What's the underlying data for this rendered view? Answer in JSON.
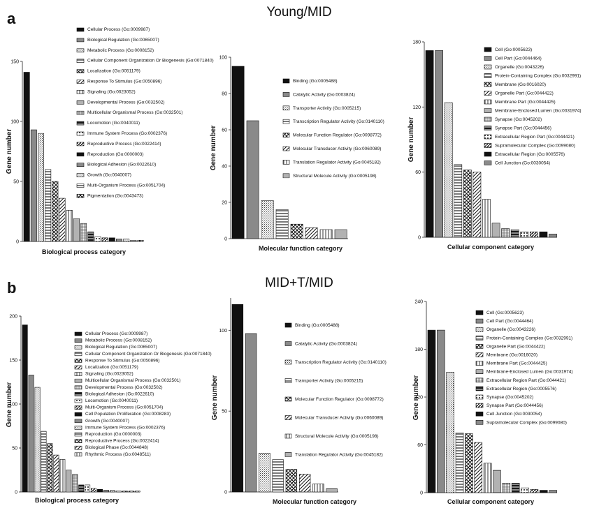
{
  "figure": {
    "panel_a_letter": "a",
    "panel_b_letter": "b",
    "row_a_title": "Young/MID",
    "row_b_title": "MID+T/MID"
  },
  "chart_data": [
    {
      "type": "bar",
      "row": "a",
      "col": 0,
      "xlabel": "Biological process category",
      "ylabel": "Gene number",
      "ylim": [
        0,
        150
      ],
      "yticks": [
        0,
        50,
        100,
        150
      ],
      "categories": [
        "Cellular Process (Go:0009987)",
        "Biological Regulation (Go:0065007)",
        "Metabolic Process (Go:0008152)",
        "Cellular Component Organization Or Biogenesis (Go:0071840)",
        "Localization (Go:0051179)",
        "Response To Stimulus (Go:0050896)",
        "Signaling (Go:0023052)",
        "Developmental Process (Go:0032502)",
        "Multicellular Organismal Process (Go:0032501)",
        "Locomotion (Go:0040011)",
        "Immune System Process (Go:0002376)",
        "Reproductive Process (Go:0022414)",
        "Reproduction (Go:0000003)",
        "Biological Adhesion (Go:0022610)",
        "Growth (Go:0040007)",
        "Multi-Organism Process (Go:0051704)",
        "Pigmentation (Go:0043473)"
      ],
      "values": [
        141,
        93,
        90,
        60,
        50,
        36,
        26,
        19,
        15,
        8,
        4,
        3,
        3,
        2,
        2,
        1,
        1
      ]
    },
    {
      "type": "bar",
      "row": "a",
      "col": 1,
      "xlabel": "Molecular function category",
      "ylabel": "Gene number",
      "ylim": [
        0,
        100
      ],
      "yticks": [
        0,
        20,
        40,
        60,
        80,
        100
      ],
      "categories": [
        "Binding (Go:0005488)",
        "Catalytic Activity (Go:0003824)",
        "Transporter Activity (Go:0005215)",
        "Transcription Regulator Activity (Go:0140110)",
        "Molecular Function Regulator (Go:0098772)",
        "Molecular Transducer Activity (Go:0060089)",
        "Translation Regulator Activity (Go:0045182)",
        "Structural Molecule Activity (Go:0005198)"
      ],
      "values": [
        95,
        65,
        21,
        16,
        8,
        6,
        5,
        5
      ]
    },
    {
      "type": "bar",
      "row": "a",
      "col": 2,
      "xlabel": "Cellular component category",
      "ylabel": "Gene number",
      "ylim": [
        0,
        180
      ],
      "yticks": [
        0,
        60,
        120,
        180
      ],
      "categories": [
        "Cell (Go:0005623)",
        "Cell Part (Go:0044464)",
        "Organelle (Go:0043226)",
        "Protein-Containing Complex (Go:0032991)",
        "Membrane (Go:0016020)",
        "Organelle Part (Go:0044422)",
        "Membrane Part (Go:0044425)",
        "Membrane-Enclosed Lumen (Go:0031974)",
        "Synapse (Go:0045202)",
        "Synapse Part (Go:0044456)",
        "Extracellular Region Part (Go:0044421)",
        "Supramolecular Complex (Go:0099080)",
        "Extracellular Region (Go:0005576)",
        "Cell Junction (Go:0030054)"
      ],
      "values": [
        172,
        172,
        124,
        67,
        62,
        60,
        35,
        13,
        8,
        7,
        5,
        5,
        5,
        3
      ]
    },
    {
      "type": "bar",
      "row": "b",
      "col": 0,
      "xlabel": "Biological process category",
      "ylabel": "Gene number",
      "ylim": [
        0,
        200
      ],
      "yticks": [
        0,
        50,
        100,
        150,
        200
      ],
      "categories": [
        "Cellular Process (Go:0009987)",
        "Metabolic Process (Go:0008152)",
        "Biological Regulation (Go:0065007)",
        "Cellular Component Organization Or Biogenesis (Go:0071840)",
        "Response To Stimulus (Go:0050896)",
        "Localization (Go:0051179)",
        "Signaling (Go:0023052)",
        "Multicellular Organismal Process (Go:0032501)",
        "Developmental Process (Go:0032502)",
        "Biological Adhesion (Go:0022610)",
        "Locomotion (Go:0040011)",
        "Multi-Organism Process (Go:0051704)",
        "Cell Population Proliferation (Go:0008283)",
        "Growth (Go:0040007)",
        "Immune System Process (Go:0002376)",
        "Reproduction (Go:0000003)",
        "Reproductive Process (Go:0022414)",
        "Biological Phase (Go:0044848)",
        "Rhythmic Process (Go:0048511)"
      ],
      "values": [
        190,
        133,
        119,
        69,
        55,
        42,
        37,
        25,
        20,
        8,
        8,
        4,
        3,
        2,
        2,
        1,
        1,
        1,
        1
      ]
    },
    {
      "type": "bar",
      "row": "b",
      "col": 1,
      "xlabel": "Molecular function category",
      "ylabel": "Gene number",
      "ylim": [
        0,
        120
      ],
      "yticks": [
        0,
        50,
        100
      ],
      "categories": [
        "Binding (Go:0005488)",
        "Catalytic Activity (Go:0003824)",
        "Transcription Regulator Activity (Go:0140110)",
        "Transporter Activity (Go:0005215)",
        "Molecular Function Regulator (Go:0098772)",
        "Molecular Transducer Activity (Go:0060089)",
        "Structural Molecule Activity (Go:0005198)",
        "Translation Regulator Activity (Go:0045182)"
      ],
      "values": [
        116,
        98,
        24,
        20,
        14,
        11,
        5,
        2
      ]
    },
    {
      "type": "bar",
      "row": "b",
      "col": 2,
      "xlabel": "Cellular component category",
      "ylabel": "Gene number",
      "ylim": [
        0,
        240
      ],
      "yticks": [
        0,
        60,
        120,
        180,
        240
      ],
      "categories": [
        "Cell (Go:0005623)",
        "Cell Part (Go:0044464)",
        "Organelle (Go:0043226)",
        "Protein-Containing Complex (Go:0032991)",
        "Organelle Part (Go:0044422)",
        "Membrane (Go:0016020)",
        "Membrane Part (Go:0044425)",
        "Membrane-Enclosed Lumen (Go:0031974)",
        "Extracellular Region Part (Go:0044421)",
        "Extracellular Region (Go:0005576)",
        "Synapse (Go:0045202)",
        "Synapse Part (Go:0044456)",
        "Cell Junction (Go:0030054)",
        "Supramolecular Complex (Go:0099080)"
      ],
      "values": [
        204,
        204,
        151,
        75,
        74,
        63,
        37,
        28,
        12,
        12,
        6,
        4,
        3,
        3
      ]
    }
  ]
}
